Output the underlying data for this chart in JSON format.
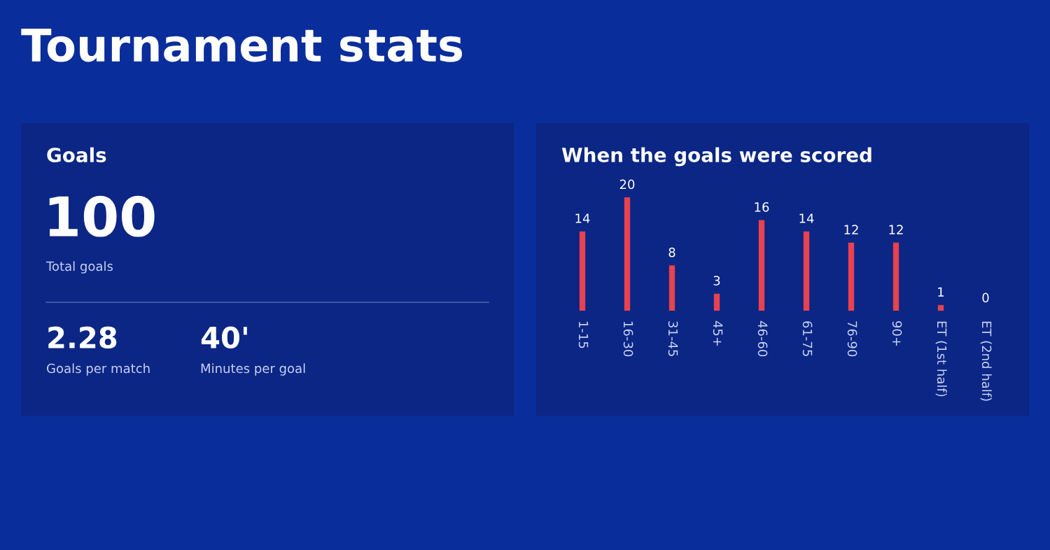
{
  "chart_data": [
    {
      "type": "other",
      "title": "Tournament stats"
    },
    {
      "type": "other",
      "title": "Goals",
      "annotations": [
        "100",
        "Total goals",
        "2.28",
        "Goals per match",
        "40'",
        "Minutes per goal"
      ]
    },
    {
      "type": "bar",
      "title": "When the goals were scored",
      "categories": [
        "1-15",
        "16-30",
        "31-45",
        "45+",
        "46-60",
        "61-75",
        "76-90",
        "90+",
        "ET (1st half)",
        "ET (2nd half)"
      ],
      "values": [
        14,
        20,
        8,
        3,
        16,
        14,
        12,
        12,
        1,
        0
      ],
      "color": "#e8414f",
      "data_labels": true
    }
  ]
}
